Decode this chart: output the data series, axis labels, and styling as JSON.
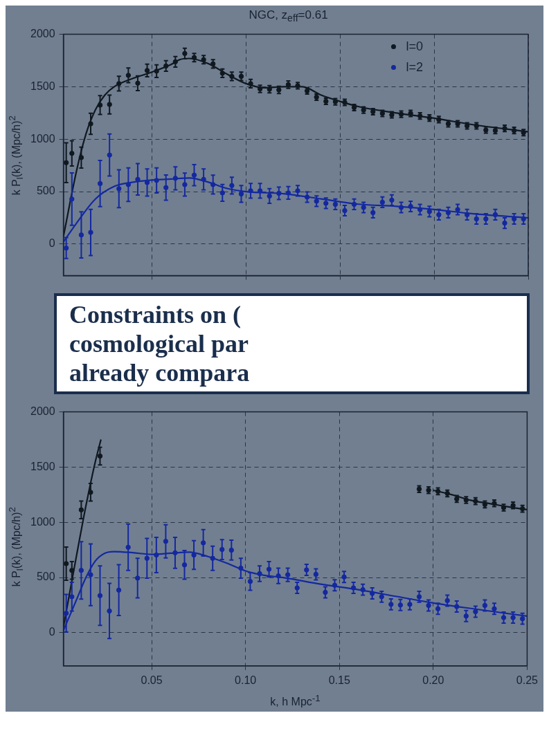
{
  "chart_data": [
    {
      "type": "scatter",
      "title": "NGC, z$_{eff}$=0.61",
      "ylabel": "k P$_{l}$(k), (Mpc/h)$^{2}$",
      "xlim": [
        0.003,
        0.25
      ],
      "ylim": [
        -300,
        2000
      ],
      "xticks": [
        {
          "value": 0.05,
          "label": null
        },
        {
          "value": 0.1,
          "label": null
        },
        {
          "value": 0.15,
          "label": null
        },
        {
          "value": 0.2,
          "label": null
        },
        {
          "value": 0.25,
          "label": null
        }
      ],
      "yticks": [
        0,
        500,
        1000,
        1500,
        2000
      ],
      "tick_labels": "y",
      "grid": true,
      "legend": "top right",
      "marker": "circle",
      "x": [
        0.0045,
        0.0075,
        0.0125,
        0.0175,
        0.0225,
        0.0275,
        0.0325,
        0.0375,
        0.0425,
        0.0475,
        0.0525,
        0.0575,
        0.0625,
        0.0675,
        0.0725,
        0.0775,
        0.0825,
        0.0875,
        0.0925,
        0.0975,
        0.1025,
        0.1075,
        0.1125,
        0.1175,
        0.1225,
        0.1275,
        0.1325,
        0.1375,
        0.1425,
        0.1475,
        0.1525,
        0.1575,
        0.1625,
        0.1675,
        0.1725,
        0.1775,
        0.1825,
        0.1875,
        0.1925,
        0.1975,
        0.2025,
        0.2075,
        0.2125,
        0.2175,
        0.2225,
        0.2275,
        0.2325,
        0.2375,
        0.2425,
        0.2475
      ],
      "series": [
        {
          "name": "l=0",
          "color": "#101820",
          "values": [
            776,
            865,
            825,
            1147,
            1325,
            1331,
            1530,
            1609,
            1534,
            1655,
            1649,
            1698,
            1738,
            1817,
            1778,
            1758,
            1718,
            1629,
            1599,
            1599,
            1530,
            1480,
            1476,
            1470,
            1520,
            1510,
            1460,
            1401,
            1361,
            1357,
            1351,
            1302,
            1278,
            1262,
            1246,
            1232,
            1238,
            1246,
            1222,
            1202,
            1187,
            1147,
            1147,
            1127,
            1127,
            1087,
            1083,
            1103,
            1083,
            1063
          ],
          "errors": [
            190,
            120,
            100,
            100,
            90,
            90,
            70,
            70,
            70,
            60,
            60,
            50,
            50,
            50,
            40,
            40,
            40,
            40,
            40,
            40,
            40,
            35,
            35,
            35,
            35,
            30,
            30,
            30,
            30,
            30,
            30,
            30,
            30,
            30,
            30,
            30,
            30,
            30,
            30,
            30,
            30,
            30,
            30,
            30,
            30,
            30,
            30,
            30,
            30,
            30
          ]
        },
        {
          "name": "l=2",
          "color": "#1428a0",
          "values": [
            -38,
            429,
            87,
            111,
            577,
            849,
            528,
            567,
            617,
            587,
            607,
            538,
            627,
            567,
            657,
            617,
            567,
            488,
            558,
            478,
            508,
            508,
            458,
            484,
            488,
            508,
            448,
            409,
            389,
            379,
            319,
            379,
            349,
            300,
            399,
            419,
            349,
            359,
            329,
            310,
            280,
            300,
            329,
            280,
            240,
            240,
            280,
            200,
            240,
            240
          ],
          "errors": [
            100,
            250,
            220,
            220,
            220,
            200,
            180,
            160,
            150,
            130,
            120,
            120,
            110,
            110,
            100,
            100,
            90,
            80,
            80,
            80,
            70,
            70,
            70,
            60,
            60,
            50,
            50,
            50,
            50,
            50,
            50,
            50,
            50,
            50,
            50,
            50,
            50,
            50,
            50,
            50,
            50,
            50,
            50,
            50,
            50,
            50,
            50,
            50,
            50,
            50
          ]
        },
        {
          "type": "line",
          "marker": "none",
          "color": "#101820",
          "x": [
            0.003,
            0.01,
            0.015,
            0.02,
            0.025,
            0.03,
            0.04,
            0.05,
            0.06,
            0.065,
            0.07,
            0.08,
            0.09,
            0.1,
            0.11,
            0.12,
            0.13,
            0.14,
            0.15,
            0.16,
            0.18,
            0.2,
            0.22,
            0.25
          ],
          "values": [
            72,
            700,
            1050,
            1280,
            1420,
            1500,
            1580,
            1640,
            1710,
            1760,
            1770,
            1720,
            1620,
            1530,
            1490,
            1500,
            1500,
            1420,
            1360,
            1310,
            1250,
            1200,
            1140,
            1070
          ]
        },
        {
          "type": "line",
          "marker": "none",
          "color": "#1428a0",
          "x": [
            0.003,
            0.01,
            0.02,
            0.03,
            0.04,
            0.05,
            0.06,
            0.07,
            0.08,
            0.09,
            0.1,
            0.12,
            0.14,
            0.16,
            0.18,
            0.2,
            0.22,
            0.25
          ],
          "values": [
            20,
            200,
            430,
            550,
            590,
            610,
            620,
            630,
            590,
            530,
            500,
            480,
            430,
            380,
            360,
            330,
            290,
            250
          ]
        }
      ],
      "annotations": [
        "Constraints on (",
        "cosmological par",
        "already compara"
      ]
    },
    {
      "type": "scatter",
      "ylabel": "k P$_{l}$(k), (Mpc/h)$^{2}$",
      "xlabel": "k, h Mpc$^{-1}$",
      "xlim": [
        0.003,
        0.25
      ],
      "ylim": [
        -300,
        2000
      ],
      "xticks": [
        0.05,
        {
          "value": 0.1,
          "label": "0.10"
        },
        0.15,
        {
          "value": 0.2,
          "label": "0.20"
        },
        0.25
      ],
      "yticks": [
        0,
        500,
        1000,
        1500,
        2000
      ],
      "grid": true,
      "marker": "circle",
      "x": [
        0.0045,
        0.0075,
        0.0125,
        0.0175,
        0.0225,
        0.0275,
        0.0325,
        0.0375,
        0.0425,
        0.0475,
        0.0525,
        0.0575,
        0.0625,
        0.0675,
        0.0725,
        0.0775,
        0.0825,
        0.0875,
        0.0925,
        0.0975,
        0.1025,
        0.1075,
        0.1125,
        0.1175,
        0.1225,
        0.1275,
        0.1325,
        0.1375,
        0.1425,
        0.1475,
        0.1525,
        0.1575,
        0.1625,
        0.1675,
        0.1725,
        0.1775,
        0.1825,
        0.1875,
        0.1925,
        0.1975,
        0.2025,
        0.2075,
        0.2125,
        0.2175,
        0.2225,
        0.2275,
        0.2325,
        0.2375,
        0.2425,
        0.2475
      ],
      "series": [
        {
          "color": "#101820",
          "values": [
            626,
            565,
            1113,
            1272,
            1600,
            null,
            null,
            null,
            null,
            null,
            null,
            null,
            null,
            null,
            null,
            null,
            null,
            null,
            null,
            null,
            null,
            null,
            null,
            null,
            null,
            null,
            null,
            null,
            null,
            null,
            null,
            null,
            null,
            null,
            null,
            null,
            null,
            null,
            1301,
            1291,
            1281,
            1262,
            1212,
            1202,
            1192,
            1162,
            1172,
            1133,
            1153,
            1123
          ],
          "errors": [
            150,
            80,
            80,
            80,
            80,
            null,
            null,
            null,
            null,
            null,
            null,
            null,
            null,
            null,
            null,
            null,
            null,
            null,
            null,
            null,
            null,
            null,
            null,
            null,
            null,
            null,
            null,
            null,
            null,
            null,
            null,
            null,
            null,
            null,
            null,
            null,
            null,
            null,
            30,
            30,
            30,
            30,
            30,
            30,
            30,
            30,
            30,
            30,
            30,
            30
          ]
        },
        {
          "color": "#1428a0",
          "values": [
            177,
            326,
            565,
            525,
            336,
            197,
            386,
            774,
            495,
            674,
            704,
            828,
            724,
            615,
            704,
            814,
            674,
            754,
            748,
            585,
            465,
            535,
            575,
            515,
            525,
            406,
            569,
            529,
            366,
            430,
            505,
            406,
            390,
            356,
            326,
            257,
            251,
            257,
            326,
            247,
            217,
            291,
            237,
            151,
            191,
            247,
            217,
            137,
            137,
            127
          ],
          "errors": [
            170,
            130,
            260,
            280,
            270,
            250,
            230,
            210,
            180,
            180,
            160,
            150,
            140,
            130,
            130,
            120,
            110,
            90,
            90,
            90,
            80,
            70,
            70,
            70,
            60,
            50,
            50,
            50,
            50,
            50,
            50,
            50,
            50,
            50,
            50,
            50,
            50,
            50,
            50,
            50,
            50,
            50,
            50,
            50,
            50,
            50,
            50,
            50,
            50,
            50
          ]
        },
        {
          "type": "line",
          "marker": "none",
          "color": "#101820",
          "x": [
            0.003,
            0.01,
            0.015,
            0.02,
            0.023,
            0.19,
            0.2,
            0.21,
            0.22,
            0.23,
            0.24,
            0.25
          ],
          "values": [
            50,
            700,
            1150,
            1550,
            1750,
            null,
            1290,
            1250,
            1200,
            1170,
            1140,
            1115
          ]
        },
        {
          "type": "line",
          "marker": "none",
          "color": "#1428a0",
          "x": [
            0.003,
            0.01,
            0.015,
            0.02,
            0.025,
            0.03,
            0.04,
            0.05,
            0.06,
            0.07,
            0.08,
            0.09,
            0.1,
            0.11,
            0.12,
            0.14,
            0.16,
            0.18,
            0.2,
            0.22,
            0.25
          ],
          "values": [
            20,
            300,
            500,
            650,
            720,
            735,
            725,
            710,
            720,
            730,
            690,
            630,
            560,
            520,
            500,
            440,
            390,
            330,
            270,
            220,
            150
          ]
        }
      ]
    }
  ]
}
